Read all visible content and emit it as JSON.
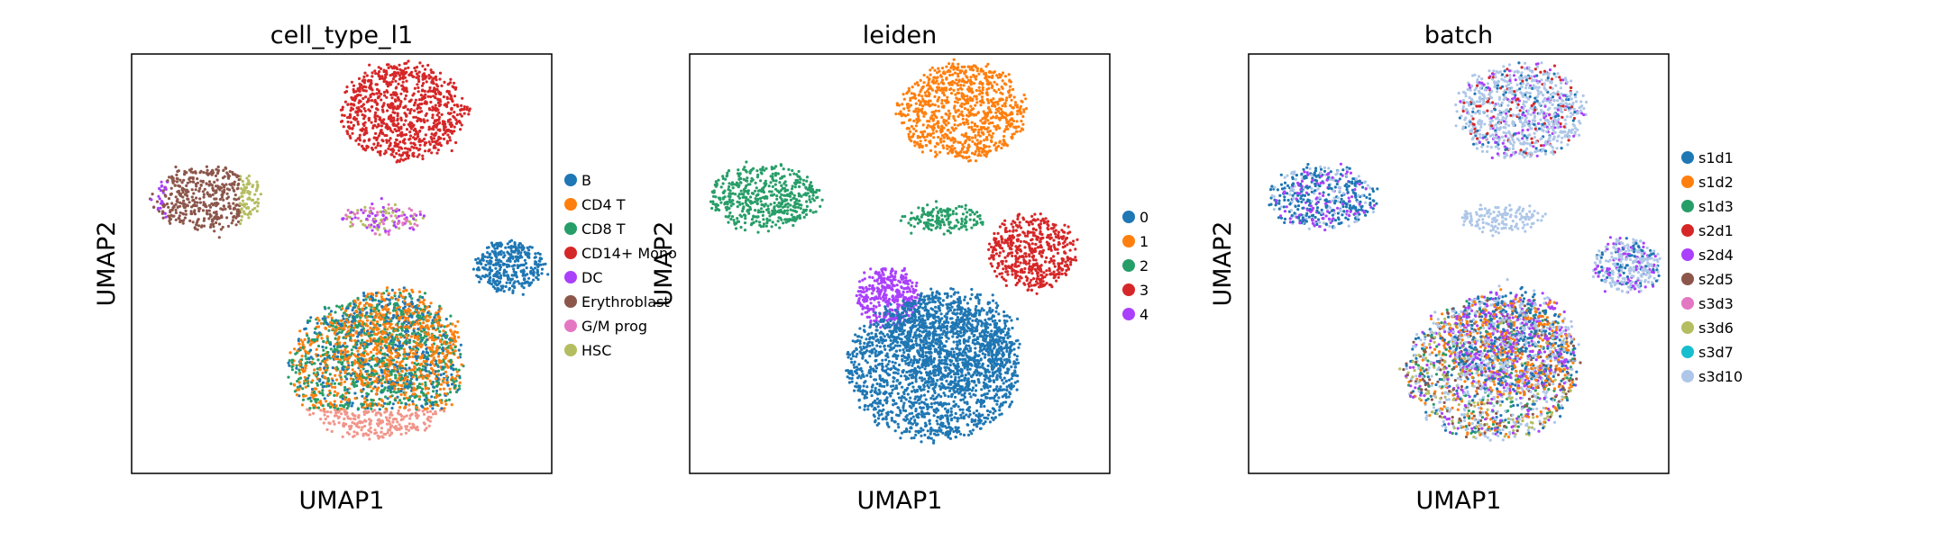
{
  "chart_data": [
    {
      "type": "scatter",
      "title": "cell_type_l1",
      "xlabel": "UMAP1",
      "ylabel": "UMAP2",
      "grid": false,
      "legend_position": "right",
      "legend": [
        {
          "label": "B",
          "color": "#1f77b4"
        },
        {
          "label": "CD4 T",
          "color": "#ff7f0e"
        },
        {
          "label": "CD8 T",
          "color": "#279e68"
        },
        {
          "label": "CD14+ Mono",
          "color": "#d62728"
        },
        {
          "label": "DC",
          "color": "#aa40fc"
        },
        {
          "label": "Erythroblast",
          "color": "#8c564b"
        },
        {
          "label": "G/M prog",
          "color": "#e377c2"
        },
        {
          "label": "HSC",
          "color": "#b5bd61"
        }
      ]
    },
    {
      "type": "scatter",
      "title": "leiden",
      "xlabel": "UMAP1",
      "ylabel": "UMAP2",
      "grid": false,
      "legend_position": "right",
      "legend": [
        {
          "label": "0",
          "color": "#1f77b4"
        },
        {
          "label": "1",
          "color": "#ff7f0e"
        },
        {
          "label": "2",
          "color": "#279e68"
        },
        {
          "label": "3",
          "color": "#d62728"
        },
        {
          "label": "4",
          "color": "#aa40fc"
        }
      ]
    },
    {
      "type": "scatter",
      "title": "batch",
      "xlabel": "UMAP1",
      "ylabel": "UMAP2",
      "grid": false,
      "legend_position": "right",
      "legend": [
        {
          "label": "s1d1",
          "color": "#1f77b4"
        },
        {
          "label": "s1d2",
          "color": "#ff7f0e"
        },
        {
          "label": "s1d3",
          "color": "#279e68"
        },
        {
          "label": "s2d1",
          "color": "#d62728"
        },
        {
          "label": "s2d4",
          "color": "#aa40fc"
        },
        {
          "label": "s2d5",
          "color": "#8c564b"
        },
        {
          "label": "s3d3",
          "color": "#e377c2"
        },
        {
          "label": "s3d6",
          "color": "#b5bd61"
        },
        {
          "label": "s3d7",
          "color": "#17becf"
        },
        {
          "label": "s3d10",
          "color": "#aec7e8"
        }
      ]
    }
  ]
}
